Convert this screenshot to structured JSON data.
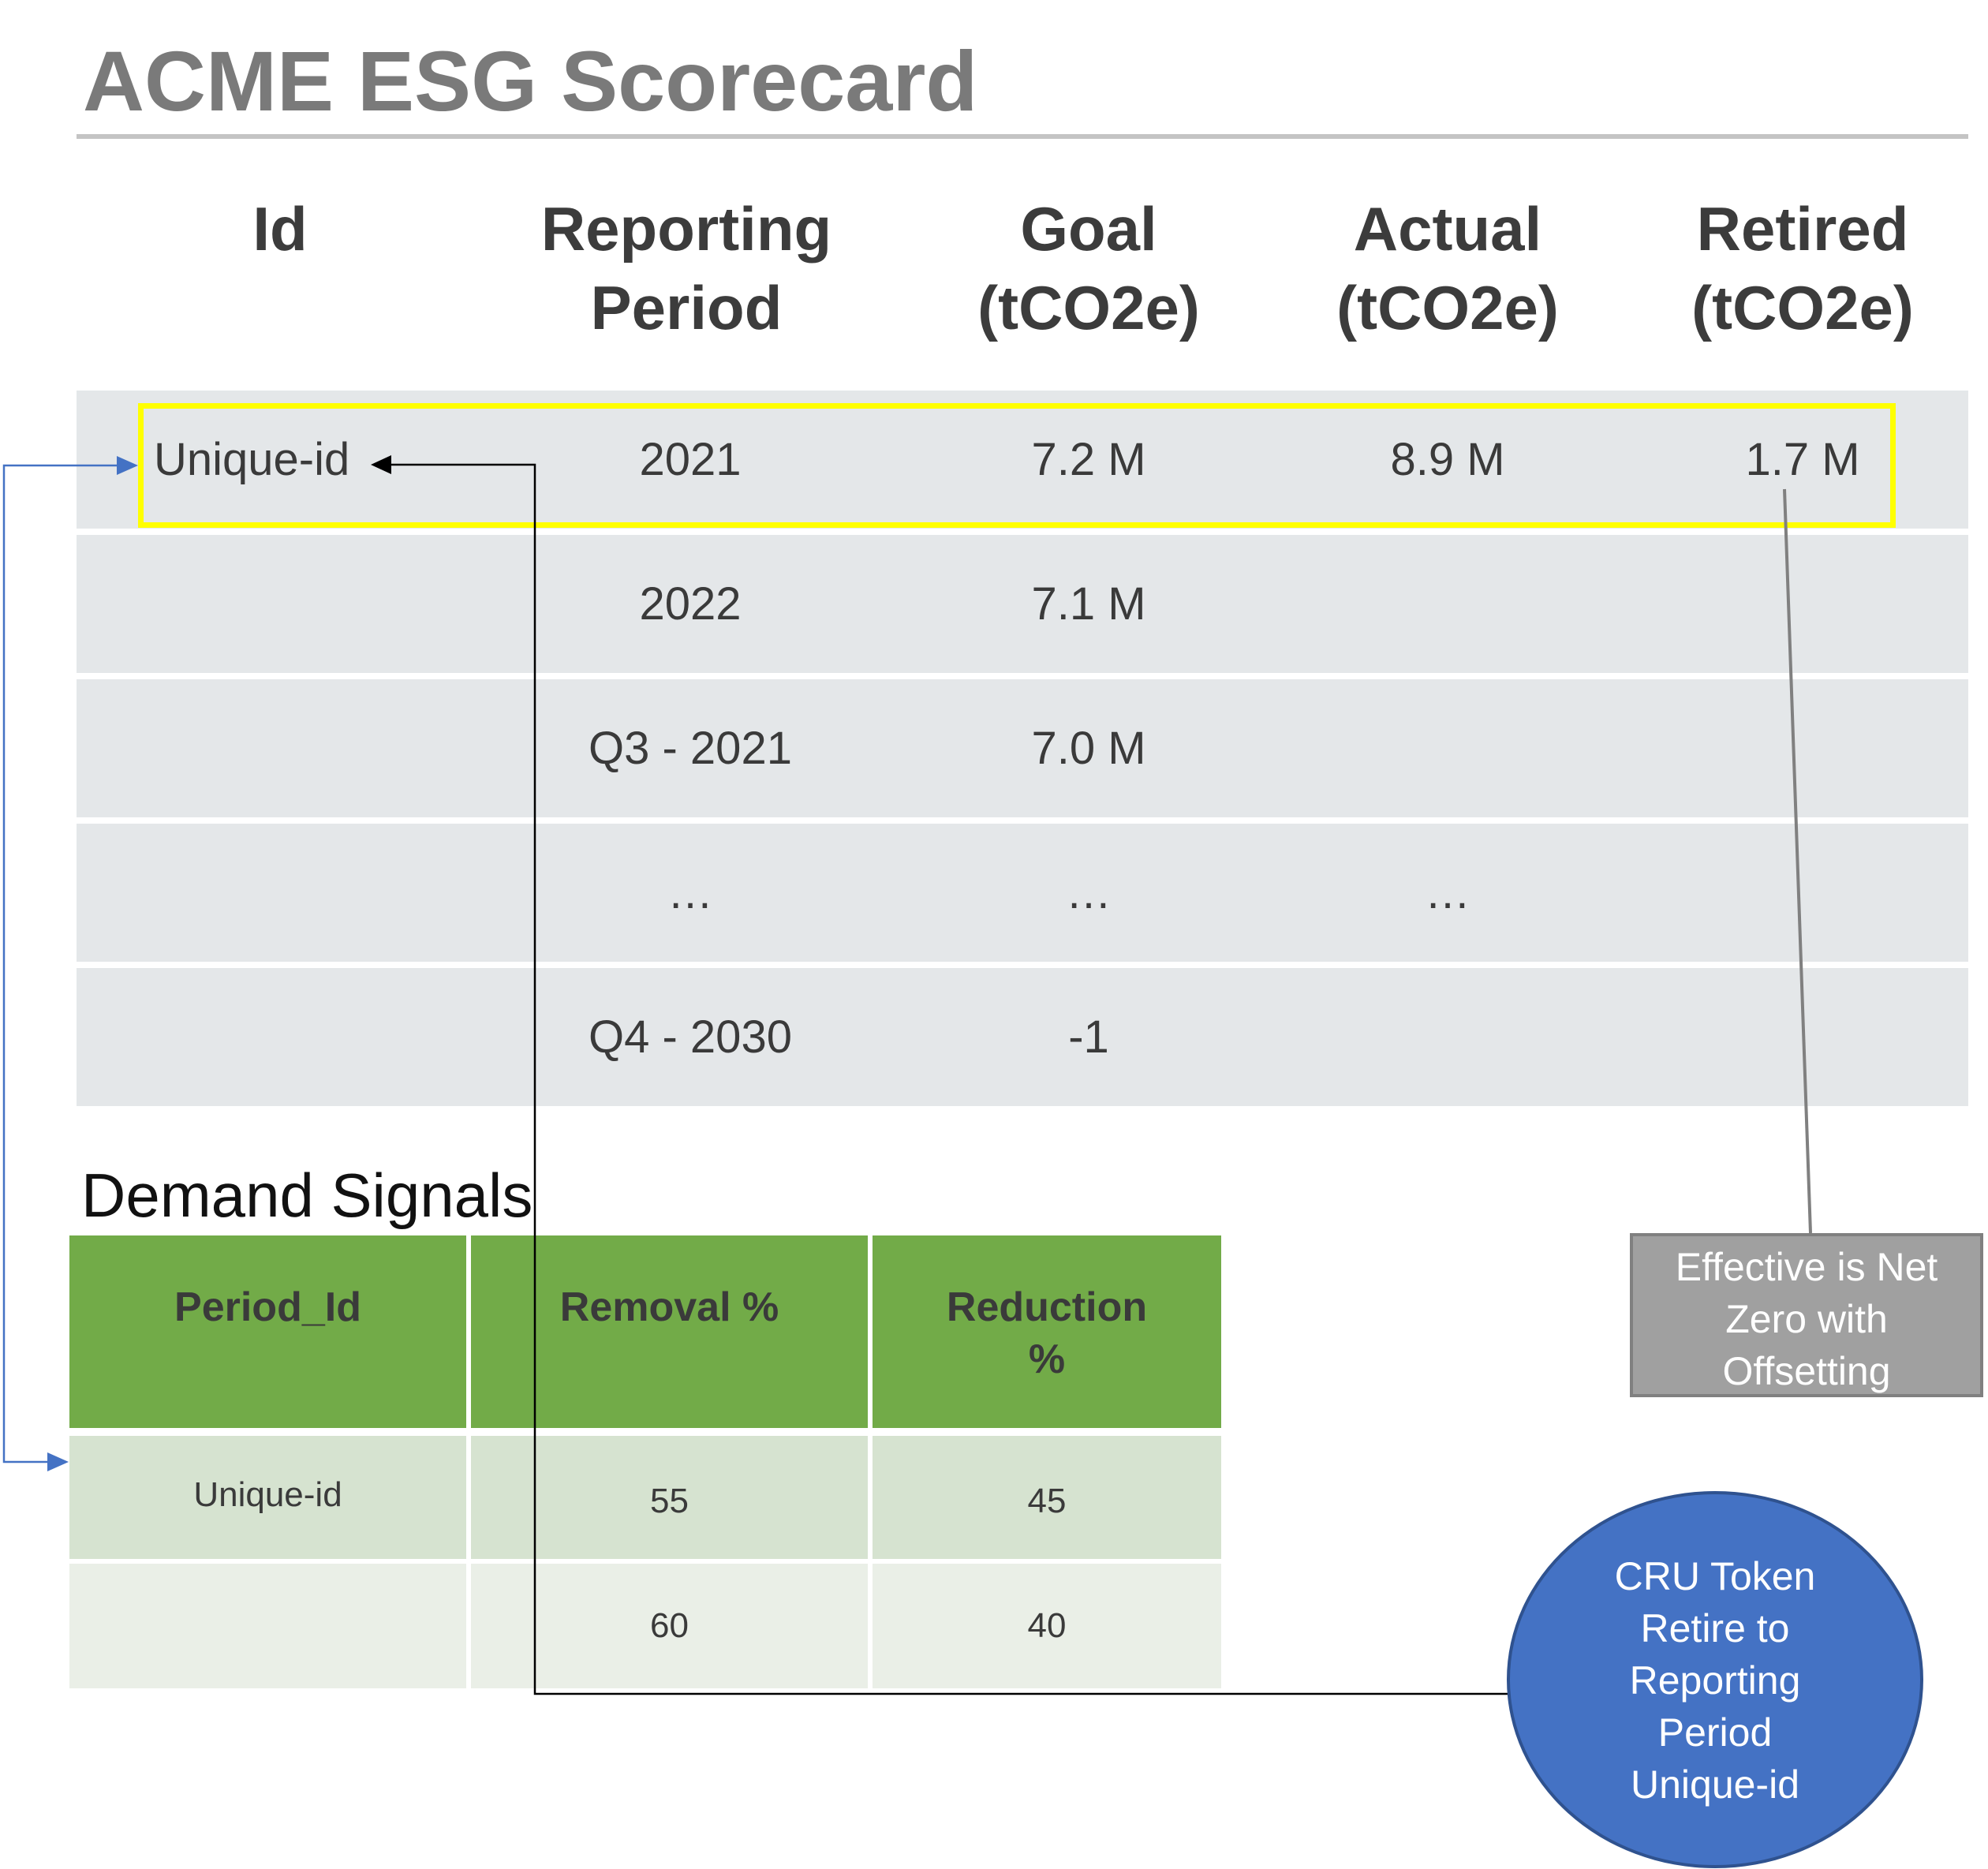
{
  "title": "ACME ESG Scorecard",
  "scorecard": {
    "headers": [
      "Id",
      "Reporting\nPeriod",
      "Goal\n(tCO2e)",
      "Actual\n(tCO2e)",
      "Retired\n(tCO2e)"
    ],
    "rows": [
      {
        "id": "Unique-id",
        "period": "2021",
        "goal": "7.2 M",
        "actual": "8.9 M",
        "retired": "1.7 M"
      },
      {
        "id": "",
        "period": "2022",
        "goal": "7.1 M",
        "actual": "",
        "retired": ""
      },
      {
        "id": "",
        "period": "Q3 - 2021",
        "goal": "7.0 M",
        "actual": "",
        "retired": ""
      },
      {
        "id": "",
        "period": "…",
        "goal": "…",
        "actual": "…",
        "retired": ""
      },
      {
        "id": "",
        "period": "Q4 - 2030",
        "goal": "-1",
        "actual": "",
        "retired": ""
      }
    ],
    "highlight_color": "#ffff00"
  },
  "demand_signals": {
    "title": "Demand Signals",
    "headers": [
      "Period_Id",
      "Removal %",
      "Reduction\n%"
    ],
    "rows": [
      {
        "period_id": "Unique-id",
        "removal": "55",
        "reduction": "45"
      },
      {
        "period_id": "",
        "removal": "60",
        "reduction": "40"
      }
    ],
    "header_color": "#72ab48"
  },
  "notes": {
    "net_zero": "Effective is Net\nZero with\nOffsetting",
    "cru_token": "CRU Token\nRetire to\nReporting\nPeriod\nUnique-id"
  },
  "colors": {
    "arrow_blue": "#4472c4",
    "arrow_black": "#000000",
    "note_gray": "#a0a0a0",
    "circle_blue": "#4472c4"
  }
}
